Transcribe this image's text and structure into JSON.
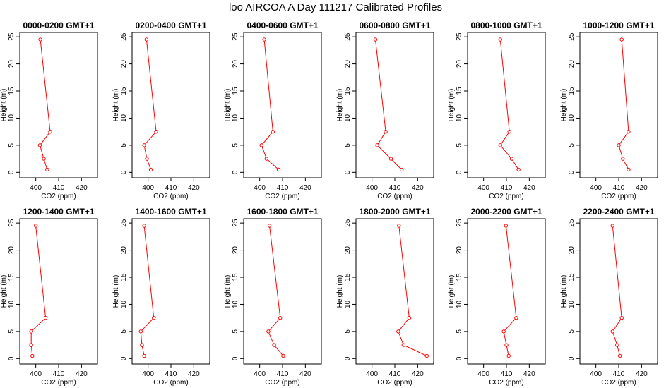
{
  "page": {
    "title": "loo AIRCOA A  Day 111217  Calibrated Profiles"
  },
  "style": {
    "series_color": "#ff0000",
    "axis_color": "#000000"
  },
  "chart_data": [
    {
      "type": "line",
      "title": "0000-0200 GMT+1",
      "xlabel": "CO2 (ppm)",
      "ylabel": "Height (m)",
      "xlim": [
        393,
        427
      ],
      "ylim": [
        -1,
        25.8
      ],
      "xticks": [
        400,
        410,
        420
      ],
      "yticks": [
        0,
        5,
        10,
        15,
        20,
        25
      ],
      "x": [
        402.0,
        406.3,
        401.8,
        403.5,
        405.0
      ],
      "y": [
        24.5,
        7.5,
        5.0,
        2.5,
        0.5
      ]
    },
    {
      "type": "line",
      "title": "0200-0400 GMT+1",
      "xlabel": "CO2 (ppm)",
      "ylabel": "Height (m)",
      "xlim": [
        393,
        427
      ],
      "ylim": [
        -1,
        25.8
      ],
      "xticks": [
        400,
        410,
        420
      ],
      "yticks": [
        0,
        5,
        10,
        15,
        20,
        25
      ],
      "x": [
        399.3,
        403.5,
        398.3,
        399.5,
        401.2
      ],
      "y": [
        24.5,
        7.5,
        5.0,
        2.5,
        0.5
      ]
    },
    {
      "type": "line",
      "title": "0400-0600 GMT+1",
      "xlabel": "CO2 (ppm)",
      "ylabel": "Height (m)",
      "xlim": [
        393,
        427
      ],
      "ylim": [
        -1,
        25.8
      ],
      "xticks": [
        400,
        410,
        420
      ],
      "yticks": [
        0,
        5,
        10,
        15,
        20,
        25
      ],
      "x": [
        402.0,
        405.8,
        400.8,
        403.0,
        408.3
      ],
      "y": [
        24.5,
        7.5,
        5.0,
        2.5,
        0.5
      ]
    },
    {
      "type": "line",
      "title": "0600-0800 GMT+1",
      "xlabel": "CO2 (ppm)",
      "ylabel": "Height (m)",
      "xlim": [
        393,
        427
      ],
      "ylim": [
        -1,
        25.8
      ],
      "xticks": [
        400,
        410,
        420
      ],
      "yticks": [
        0,
        5,
        10,
        15,
        20,
        25
      ],
      "x": [
        401.5,
        406.0,
        402.3,
        408.3,
        413.0
      ],
      "y": [
        24.5,
        7.5,
        5.0,
        2.5,
        0.5
      ]
    },
    {
      "type": "line",
      "title": "0800-1000 GMT+1",
      "xlabel": "CO2 (ppm)",
      "ylabel": "Height (m)",
      "xlim": [
        393,
        427
      ],
      "ylim": [
        -1,
        25.8
      ],
      "xticks": [
        400,
        410,
        420
      ],
      "yticks": [
        0,
        5,
        10,
        15,
        20,
        25
      ],
      "x": [
        407.3,
        411.3,
        407.3,
        412.3,
        415.3
      ],
      "y": [
        24.5,
        7.5,
        5.0,
        2.5,
        0.5
      ]
    },
    {
      "type": "line",
      "title": "1000-1200 GMT+1",
      "xlabel": "CO2 (ppm)",
      "ylabel": "Height (m)",
      "xlim": [
        393,
        427
      ],
      "ylim": [
        -1,
        25.8
      ],
      "xticks": [
        400,
        410,
        420
      ],
      "yticks": [
        0,
        5,
        10,
        15,
        20,
        25
      ],
      "x": [
        411.3,
        414.3,
        410.0,
        411.8,
        414.3
      ],
      "y": [
        24.5,
        7.5,
        5.0,
        2.5,
        0.5
      ]
    },
    {
      "type": "line",
      "title": "1200-1400 GMT+1",
      "xlabel": "CO2 (ppm)",
      "ylabel": "Height (m)",
      "xlim": [
        393,
        427
      ],
      "ylim": [
        -1,
        25.8
      ],
      "xticks": [
        400,
        410,
        420
      ],
      "yticks": [
        0,
        5,
        10,
        15,
        20,
        25
      ],
      "x": [
        400.0,
        404.3,
        398.0,
        398.0,
        398.5
      ],
      "y": [
        24.5,
        7.5,
        5.0,
        2.5,
        0.5
      ]
    },
    {
      "type": "line",
      "title": "1400-1600 GMT+1",
      "xlabel": "CO2 (ppm)",
      "ylabel": "Height (m)",
      "xlim": [
        393,
        427
      ],
      "ylim": [
        -1,
        25.8
      ],
      "xticks": [
        400,
        410,
        420
      ],
      "yticks": [
        0,
        5,
        10,
        15,
        20,
        25
      ],
      "x": [
        398.3,
        402.5,
        396.8,
        397.3,
        398.3
      ],
      "y": [
        24.5,
        7.5,
        5.0,
        2.5,
        0.5
      ]
    },
    {
      "type": "line",
      "title": "1600-1800 GMT+1",
      "xlabel": "CO2 (ppm)",
      "ylabel": "Height (m)",
      "xlim": [
        393,
        427
      ],
      "ylim": [
        -1,
        25.8
      ],
      "xticks": [
        400,
        410,
        420
      ],
      "yticks": [
        0,
        5,
        10,
        15,
        20,
        25
      ],
      "x": [
        404.3,
        409.0,
        403.8,
        406.3,
        410.3
      ],
      "y": [
        24.5,
        7.5,
        5.0,
        2.5,
        0.5
      ]
    },
    {
      "type": "line",
      "title": "1800-2000 GMT+1",
      "xlabel": "CO2 (ppm)",
      "ylabel": "Height (m)",
      "xlim": [
        393,
        427
      ],
      "ylim": [
        -1,
        25.8
      ],
      "xticks": [
        400,
        410,
        420
      ],
      "yticks": [
        0,
        5,
        10,
        15,
        20,
        25
      ],
      "x": [
        411.8,
        416.3,
        411.5,
        413.8,
        424.0
      ],
      "y": [
        24.5,
        7.5,
        5.0,
        2.5,
        0.5
      ]
    },
    {
      "type": "line",
      "title": "2000-2200 GMT+1",
      "xlabel": "CO2 (ppm)",
      "ylabel": "Height (m)",
      "xlim": [
        393,
        427
      ],
      "ylim": [
        -1,
        25.8
      ],
      "xticks": [
        400,
        410,
        420
      ],
      "yticks": [
        0,
        5,
        10,
        15,
        20,
        25
      ],
      "x": [
        409.8,
        414.3,
        408.8,
        410.0,
        411.0
      ],
      "y": [
        24.5,
        7.5,
        5.0,
        2.5,
        0.5
      ]
    },
    {
      "type": "line",
      "title": "2200-2400 GMT+1",
      "xlabel": "CO2 (ppm)",
      "ylabel": "Height (m)",
      "xlim": [
        393,
        427
      ],
      "ylim": [
        -1,
        25.8
      ],
      "xticks": [
        400,
        410,
        420
      ],
      "yticks": [
        0,
        5,
        10,
        15,
        20,
        25
      ],
      "x": [
        407.3,
        411.3,
        407.3,
        409.3,
        410.5
      ],
      "y": [
        24.5,
        7.5,
        5.0,
        2.5,
        0.5
      ]
    }
  ]
}
